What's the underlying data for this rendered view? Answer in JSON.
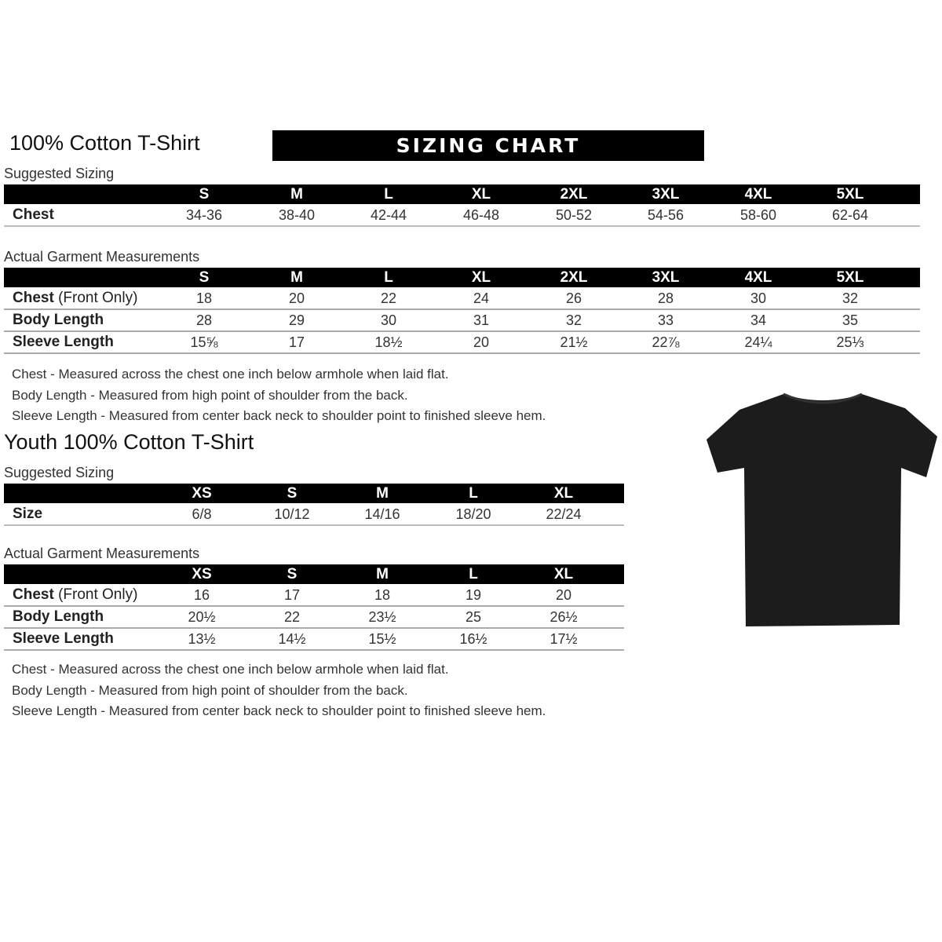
{
  "adult": {
    "title": "100% Cotton T-Shirt",
    "banner": "SIZING CHART",
    "suggested_label": "Suggested Sizing",
    "sizes": [
      "S",
      "M",
      "L",
      "XL",
      "2XL",
      "3XL",
      "4XL",
      "5XL"
    ],
    "suggested_rows": [
      {
        "label": "Chest",
        "values": [
          "34-36",
          "38-40",
          "42-44",
          "46-48",
          "50-52",
          "54-56",
          "58-60",
          "62-64"
        ]
      }
    ],
    "actual_label": "Actual Garment Measurements",
    "actual_rows": [
      {
        "label": "Chest",
        "label_extra": " (Front Only)",
        "values": [
          "18",
          "20",
          "22",
          "24",
          "26",
          "28",
          "30",
          "32"
        ]
      },
      {
        "label": "Body Length",
        "label_extra": "",
        "values": [
          "28",
          "29",
          "30",
          "31",
          "32",
          "33",
          "34",
          "35"
        ]
      },
      {
        "label": "Sleeve Length",
        "label_extra": "",
        "values": [
          "15⅝",
          "17",
          "18½",
          "20",
          "21½",
          "22⅞",
          "24¼",
          "25⅓"
        ]
      }
    ],
    "notes": [
      "Chest - Measured across the chest one inch below armhole when laid flat.",
      "Body Length - Measured from high point of shoulder from the back.",
      "Sleeve Length - Measured from center back neck to shoulder point to finished sleeve hem."
    ]
  },
  "youth": {
    "title": "Youth 100% Cotton T-Shirt",
    "suggested_label": "Suggested Sizing",
    "sizes": [
      "XS",
      "S",
      "M",
      "L",
      "XL"
    ],
    "suggested_rows": [
      {
        "label": "Size",
        "values": [
          "6/8",
          "10/12",
          "14/16",
          "18/20",
          "22/24"
        ]
      }
    ],
    "actual_label": "Actual Garment Measurements",
    "actual_rows": [
      {
        "label": "Chest",
        "label_extra": " (Front Only)",
        "values": [
          "16",
          "17",
          "18",
          "19",
          "20"
        ]
      },
      {
        "label": "Body Length",
        "label_extra": "",
        "values": [
          "20½",
          "22",
          "23½",
          "25",
          "26½"
        ]
      },
      {
        "label": "Sleeve Length",
        "label_extra": "",
        "values": [
          "13½",
          "14½",
          "15½",
          "16½",
          "17½"
        ]
      }
    ],
    "notes": [
      "Chest - Measured across the chest one inch below armhole when laid flat.",
      "Body Length - Measured from high point of shoulder from the back.",
      "Sleeve Length - Measured from center back neck to shoulder point to finished sleeve hem."
    ]
  },
  "colors": {
    "header_bar": "#000000",
    "shirt": "#1a1a1a"
  }
}
